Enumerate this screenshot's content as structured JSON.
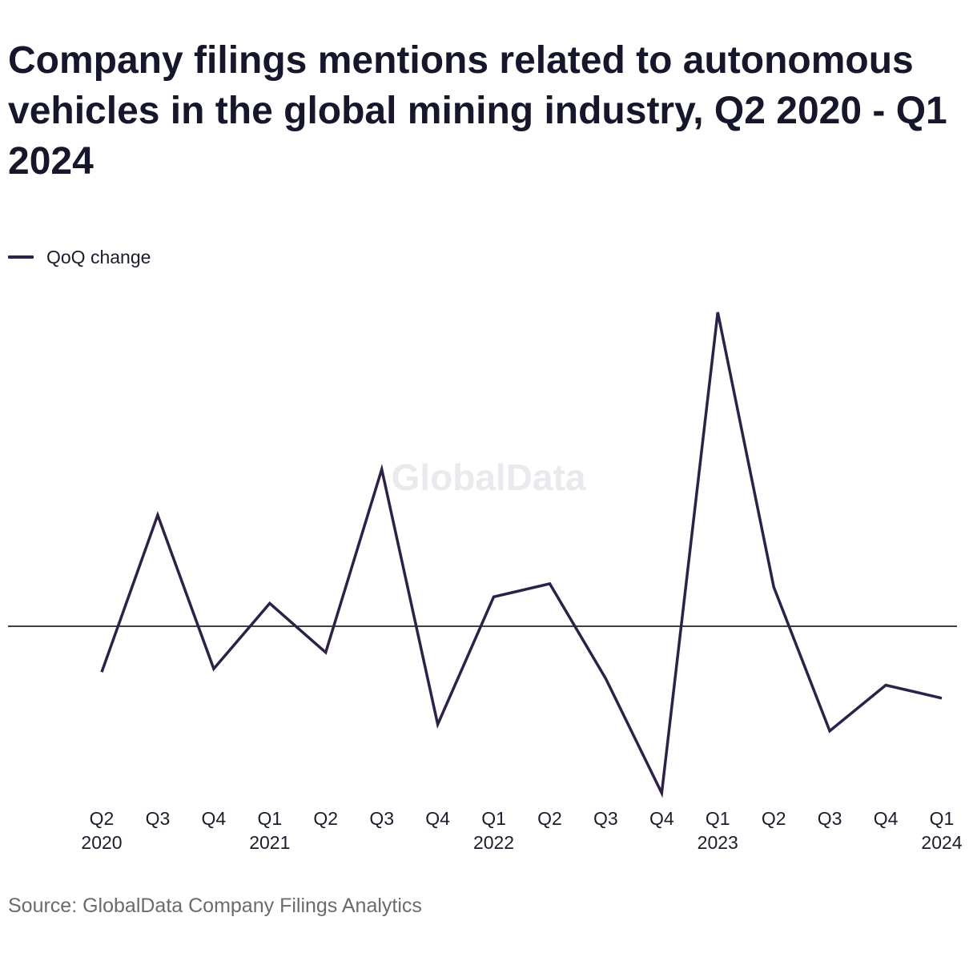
{
  "title": "Company filings mentions related to autonomous vehicles in the global mining industry, Q2 2020 - Q1 2024",
  "legend": {
    "label": "QoQ change"
  },
  "watermark": "GlobalData",
  "source": "Source: GlobalData Company Filings Analytics",
  "colors": {
    "series": "#2d2147",
    "zero_line": "#000000",
    "source_text": "#6b6b6b"
  },
  "chart_data": {
    "type": "line",
    "title": "Company filings mentions related to autonomous vehicles in the global mining industry, Q2 2020 - Q1 2024",
    "xlabel": "",
    "ylabel": "",
    "y_axis_labels_shown": false,
    "grid": false,
    "zero_line": true,
    "legend_position": "top-left",
    "categories": [
      [
        "Q2",
        "2020"
      ],
      [
        "Q3",
        ""
      ],
      [
        "Q4",
        ""
      ],
      [
        "Q1",
        "2021"
      ],
      [
        "Q2",
        ""
      ],
      [
        "Q3",
        ""
      ],
      [
        "Q4",
        ""
      ],
      [
        "Q1",
        "2022"
      ],
      [
        "Q2",
        ""
      ],
      [
        "Q3",
        ""
      ],
      [
        "Q4",
        ""
      ],
      [
        "Q1",
        "2023"
      ],
      [
        "Q2",
        ""
      ],
      [
        "Q3",
        ""
      ],
      [
        "Q4",
        ""
      ],
      [
        "Q1",
        "2024"
      ]
    ],
    "series": [
      {
        "name": "QoQ change",
        "values": [
          -14,
          34,
          -13,
          7,
          -8,
          48,
          -30,
          9,
          13,
          -16,
          -51,
          96,
          12,
          -32,
          -18,
          -22
        ]
      }
    ],
    "ylim": [
      -55,
      100
    ]
  }
}
